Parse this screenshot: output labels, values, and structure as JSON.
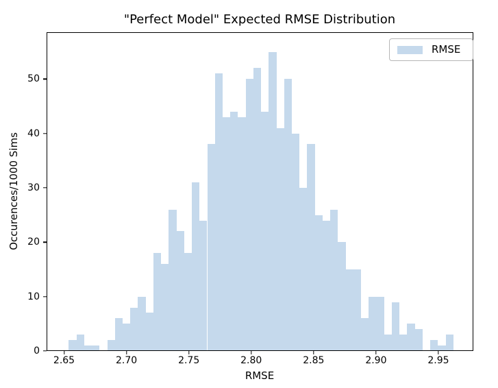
{
  "chart_data": {
    "type": "bar",
    "subtype": "histogram",
    "title": "\"Perfect Model\" Expected RMSE Distribution",
    "xlabel": "RMSE",
    "ylabel": "Occurences/1000 Sims",
    "legend": {
      "label": "RMSE",
      "position": "upper right"
    },
    "bar_color": "#c5d9ec",
    "grid": false,
    "bin_start": 2.6538,
    "bin_width": 0.006163,
    "counts": [
      2,
      3,
      1,
      1,
      0,
      2,
      6,
      5,
      8,
      10,
      7,
      18,
      16,
      26,
      22,
      18,
      31,
      24,
      38,
      51,
      43,
      44,
      43,
      50,
      52,
      44,
      55,
      41,
      50,
      40,
      30,
      38,
      25,
      24,
      26,
      20,
      15,
      15,
      6,
      10,
      10,
      3,
      9,
      3,
      5,
      4,
      0,
      2,
      1,
      3
    ],
    "xlim": [
      2.636,
      2.978
    ],
    "ylim": [
      0,
      58.6
    ],
    "xticks": [
      2.65,
      2.7,
      2.75,
      2.8,
      2.85,
      2.9,
      2.95
    ],
    "xtick_labels": [
      "2.65",
      "2.70",
      "2.75",
      "2.80",
      "2.85",
      "2.90",
      "2.95"
    ],
    "yticks": [
      0,
      10,
      20,
      30,
      40,
      50
    ],
    "ytick_labels": [
      "0",
      "10",
      "20",
      "30",
      "40",
      "50"
    ]
  }
}
